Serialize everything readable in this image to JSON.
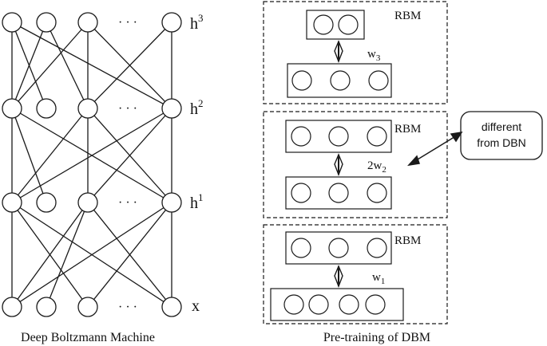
{
  "left_panel": {
    "caption": "Deep Boltzmann Machine",
    "ellipsis": "· · ·",
    "layers": [
      {
        "base": "h",
        "sup": "3"
      },
      {
        "base": "h",
        "sup": "2"
      },
      {
        "base": "h",
        "sup": "1"
      },
      {
        "base": "x",
        "sup": ""
      }
    ]
  },
  "right_panel": {
    "caption": "Pre-training of DBM",
    "stages": [
      {
        "label": "RBM",
        "weight": {
          "prefix": "w",
          "sub": "3"
        }
      },
      {
        "label": "RBM",
        "weight": {
          "prefix": "2w",
          "sub": "2"
        }
      },
      {
        "label": "RBM",
        "weight": {
          "prefix": "w",
          "sub": "1"
        }
      }
    ]
  },
  "callout": {
    "line1": "different",
    "line2": "from DBN"
  },
  "colors": {
    "stroke": "#1a1a1a",
    "background": "#ffffff"
  }
}
